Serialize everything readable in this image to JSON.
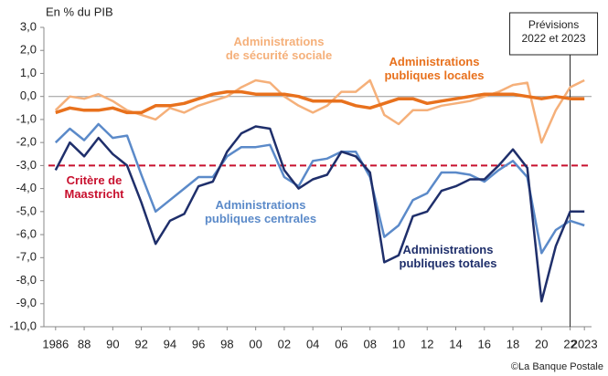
{
  "chart_data": {
    "type": "line",
    "y_label": "En % du PIB",
    "source": "©La Banque Postale",
    "x": [
      1986,
      1987,
      1988,
      1989,
      1990,
      1991,
      1992,
      1993,
      1994,
      1995,
      1996,
      1997,
      1998,
      1999,
      2000,
      2001,
      2002,
      2003,
      2004,
      2005,
      2006,
      2007,
      2008,
      2009,
      2010,
      2011,
      2012,
      2013,
      2014,
      2015,
      2016,
      2017,
      2018,
      2019,
      2020,
      2021,
      2022,
      2023
    ],
    "series": [
      {
        "name": "Administrations\npubliques totales",
        "color": "#1f2f6b",
        "values": [
          -3.2,
          -2.0,
          -2.6,
          -1.8,
          -2.5,
          -3.0,
          -4.6,
          -6.4,
          -5.4,
          -5.1,
          -3.9,
          -3.7,
          -2.4,
          -1.6,
          -1.3,
          -1.4,
          -3.2,
          -4.0,
          -3.6,
          -3.4,
          -2.4,
          -2.6,
          -3.3,
          -7.2,
          -6.9,
          -5.2,
          -5.0,
          -4.1,
          -3.9,
          -3.6,
          -3.6,
          -3.0,
          -2.3,
          -3.1,
          -8.9,
          -6.5,
          -5.0,
          -5.0
        ]
      },
      {
        "name": "Administrations\npubliques centrales",
        "color": "#5b8ac9",
        "values": [
          -2.0,
          -1.4,
          -1.9,
          -1.2,
          -1.8,
          -1.7,
          -3.4,
          -5.0,
          -4.5,
          -4.0,
          -3.5,
          -3.5,
          -2.6,
          -2.2,
          -2.2,
          -2.1,
          -3.5,
          -3.9,
          -2.8,
          -2.7,
          -2.4,
          -2.4,
          -3.5,
          -6.1,
          -5.6,
          -4.5,
          -4.2,
          -3.3,
          -3.3,
          -3.4,
          -3.7,
          -3.2,
          -2.8,
          -3.5,
          -6.8,
          -5.8,
          -5.4,
          -5.6
        ]
      },
      {
        "name": "Administrations\nde sécurité sociale",
        "color": "#f5b07a",
        "values": [
          -0.6,
          0.0,
          -0.1,
          0.1,
          -0.2,
          -0.6,
          -0.8,
          -1.0,
          -0.5,
          -0.7,
          -0.4,
          -0.2,
          0.0,
          0.4,
          0.7,
          0.6,
          0.0,
          -0.4,
          -0.7,
          -0.4,
          0.2,
          0.2,
          0.7,
          -0.8,
          -1.2,
          -0.6,
          -0.6,
          -0.4,
          -0.3,
          -0.2,
          0.0,
          0.2,
          0.5,
          0.6,
          -2.0,
          -0.6,
          0.4,
          0.7
        ]
      },
      {
        "name": "Administrations\npubliques locales",
        "color": "#e8711d",
        "values": [
          -0.7,
          -0.5,
          -0.6,
          -0.6,
          -0.5,
          -0.7,
          -0.7,
          -0.4,
          -0.4,
          -0.3,
          -0.1,
          0.1,
          0.2,
          0.2,
          0.1,
          0.1,
          0.1,
          0.0,
          -0.2,
          -0.2,
          -0.2,
          -0.4,
          -0.5,
          -0.3,
          -0.1,
          -0.1,
          -0.3,
          -0.2,
          -0.1,
          0.0,
          0.1,
          0.1,
          0.1,
          0.0,
          -0.1,
          0.0,
          -0.1,
          -0.1
        ]
      }
    ],
    "reference_line": {
      "value": -3,
      "label": "Critère de\nMaastricht",
      "color": "#c8102e"
    },
    "forecast": {
      "start": 2022,
      "label": "Prévisions\n2022 et 2023"
    },
    "xlim": [
      1985.5,
      2023.5
    ],
    "xticks": [
      {
        "value": 1986,
        "label": "1986"
      },
      {
        "value": 1988,
        "label": "88"
      },
      {
        "value": 1990,
        "label": "90"
      },
      {
        "value": 1992,
        "label": "92"
      },
      {
        "value": 1994,
        "label": "94"
      },
      {
        "value": 1996,
        "label": "96"
      },
      {
        "value": 1998,
        "label": "98"
      },
      {
        "value": 2000,
        "label": "00"
      },
      {
        "value": 2002,
        "label": "02"
      },
      {
        "value": 2004,
        "label": "04"
      },
      {
        "value": 2006,
        "label": "06"
      },
      {
        "value": 2008,
        "label": "08"
      },
      {
        "value": 2010,
        "label": "10"
      },
      {
        "value": 2012,
        "label": "12"
      },
      {
        "value": 2014,
        "label": "14"
      },
      {
        "value": 2016,
        "label": "16"
      },
      {
        "value": 2018,
        "label": "18"
      },
      {
        "value": 2020,
        "label": "20"
      },
      {
        "value": 2022,
        "label": "22"
      },
      {
        "value": 2023,
        "label": "2023"
      }
    ],
    "ylim": [
      -10,
      3
    ],
    "yticks": [
      {
        "value": 3,
        "label": "3,0"
      },
      {
        "value": 2,
        "label": "2,0"
      },
      {
        "value": 1,
        "label": "1,0"
      },
      {
        "value": 0,
        "label": "0,0"
      },
      {
        "value": -1,
        "label": "-1,0"
      },
      {
        "value": -2,
        "label": "-2,0"
      },
      {
        "value": -3,
        "label": "-3,0"
      },
      {
        "value": -4,
        "label": "-4,0"
      },
      {
        "value": -5,
        "label": "-5,0"
      },
      {
        "value": -6,
        "label": "-6,0"
      },
      {
        "value": -7,
        "label": "-7,0"
      },
      {
        "value": -8,
        "label": "-8,0"
      },
      {
        "value": -9,
        "label": "-9,0"
      },
      {
        "value": -10,
        "label": "-10,0"
      }
    ],
    "zero_line": true
  }
}
